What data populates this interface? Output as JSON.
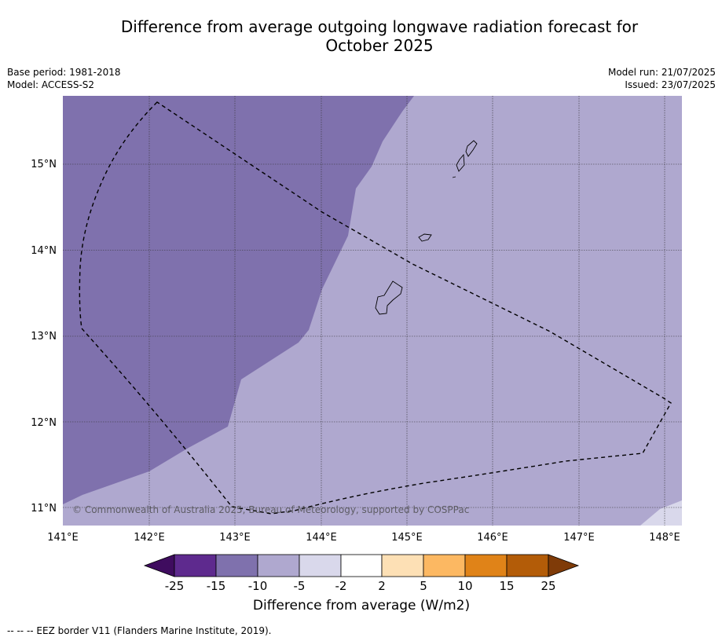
{
  "title": {
    "line1": "Difference from average outgoing longwave radiation forecast for",
    "line2": "October 2025"
  },
  "meta": {
    "base_period": "Base period: 1981-2018",
    "model": "Model: ACCESS-S2",
    "model_run": "Model run: 21/07/2025",
    "issued": "Issued: 23/07/2025"
  },
  "map": {
    "lon_labels": [
      "141°E",
      "142°E",
      "143°E",
      "144°E",
      "145°E",
      "146°E",
      "147°E",
      "148°E"
    ],
    "lat_labels": [
      "15°N",
      "14°N",
      "13°N",
      "12°N",
      "11°N"
    ],
    "copyright": "© Commonwealth of Australia 2025, Bureau of Meteorology, supported by COSPPac"
  },
  "colorbar": {
    "title": "Difference from average (W/m2)",
    "tick_labels": [
      "-25",
      "-15",
      "-10",
      "-5",
      "-2",
      "2",
      "5",
      "10",
      "15",
      "25"
    ],
    "colors": [
      "#3f0c5f",
      "#5e2a8e",
      "#7f71ad",
      "#afa8cf",
      "#d9d8eb",
      "#ffffff",
      "#fde0b5",
      "#fcb862",
      "#e08318",
      "#b35c08",
      "#7f3b08"
    ]
  },
  "footnote": "--  --  -- EEZ border V11 (Flanders Marine Institute, 2019)."
}
